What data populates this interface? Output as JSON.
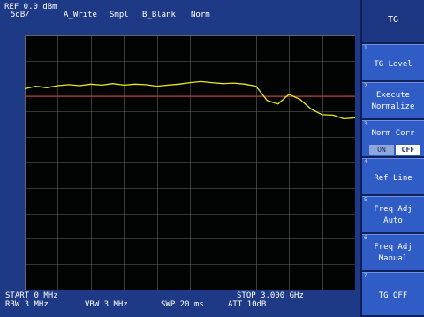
{
  "header": {
    "ref": "REF 0.0 dBm",
    "scale": "5dB/",
    "trace_a": "A_Write",
    "detector": "Smpl",
    "trace_b": "B_Blank",
    "mode": "Norm"
  },
  "footer": {
    "start": "START 0 MHz",
    "stop": "STOP 3.000 GHz",
    "rbw": "RBW 3 MHz",
    "vbw": "VBW 3 MHz",
    "swp": "SWP 20 ms",
    "att": "ATT 10dB"
  },
  "softkeys": {
    "title": "TG",
    "items": [
      {
        "num": "1",
        "label1": "TG Level",
        "label2": ""
      },
      {
        "num": "2",
        "label1": "Execute",
        "label2": "Normalize"
      },
      {
        "num": "3",
        "label1": "Norm Corr",
        "on": "ON",
        "off": "OFF"
      },
      {
        "num": "4",
        "label1": "Ref Line",
        "label2": ""
      },
      {
        "num": "5",
        "label1": "Freq Adj",
        "label2": "Auto"
      },
      {
        "num": "6",
        "label1": "Freq Adj",
        "label2": "Manual"
      },
      {
        "num": "7",
        "label1": "TG OFF",
        "label2": ""
      }
    ]
  },
  "colors": {
    "trace": "#e8e820",
    "ref_line": "#c04040",
    "grid": "#5a6a60"
  },
  "chart_data": {
    "type": "line",
    "x": [
      0,
      0.1,
      0.2,
      0.3,
      0.4,
      0.5,
      0.6,
      0.7,
      0.8,
      0.9,
      1.0,
      1.1,
      1.2,
      1.3,
      1.4,
      1.5,
      1.6,
      1.7,
      1.8,
      1.9,
      2.0,
      2.1,
      2.2,
      2.3,
      2.4,
      2.5,
      2.6,
      2.7,
      2.8,
      2.9,
      3.0
    ],
    "values": [
      -10.5,
      -10.0,
      -10.3,
      -9.9,
      -9.7,
      -9.9,
      -9.6,
      -9.8,
      -9.5,
      -9.8,
      -9.6,
      -9.7,
      -10.0,
      -9.8,
      -9.6,
      -9.3,
      -9.1,
      -9.3,
      -9.5,
      -9.4,
      -9.6,
      -10.0,
      -12.8,
      -13.5,
      -11.6,
      -12.6,
      -14.5,
      -15.6,
      -15.7,
      -16.4,
      -16.2
    ],
    "ref_line": -12,
    "xlim": [
      0,
      3.0
    ],
    "ylim": [
      -50,
      0
    ],
    "grid": true,
    "xdivisions": 10,
    "ydivisions": 10
  }
}
